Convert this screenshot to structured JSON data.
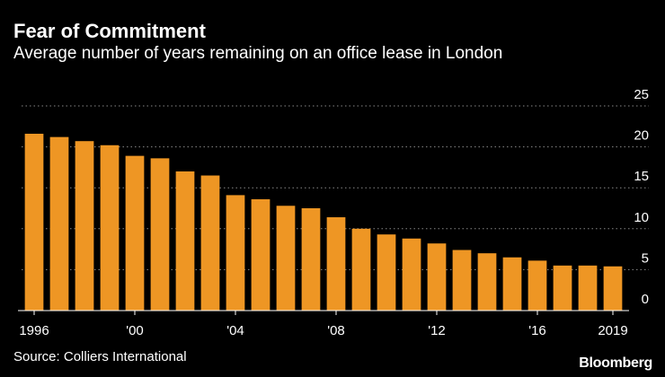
{
  "chart_data": {
    "type": "bar",
    "title": "Fear of Commitment",
    "subtitle": "Average number of years remaining on an office lease in London",
    "categories": [
      "1996",
      "1997",
      "1998",
      "1999",
      "2000",
      "2001",
      "2002",
      "2003",
      "2004",
      "2005",
      "2006",
      "2007",
      "2008",
      "2009",
      "2010",
      "2011",
      "2012",
      "2013",
      "2014",
      "2015",
      "2016",
      "2017",
      "2018",
      "2019"
    ],
    "values": [
      21.6,
      21.2,
      20.7,
      20.2,
      18.9,
      18.6,
      17.0,
      16.5,
      14.1,
      13.6,
      12.8,
      12.5,
      11.4,
      10.0,
      9.3,
      8.8,
      8.2,
      7.4,
      7.0,
      6.5,
      6.1,
      5.5,
      5.5,
      5.4
    ],
    "x_tick_labels": [
      {
        "index": 0,
        "label": "1996"
      },
      {
        "index": 4,
        "label": "'00"
      },
      {
        "index": 8,
        "label": "'04"
      },
      {
        "index": 12,
        "label": "'08"
      },
      {
        "index": 16,
        "label": "'12"
      },
      {
        "index": 20,
        "label": "'16"
      },
      {
        "index": 23,
        "label": "2019"
      }
    ],
    "y_ticks": [
      0,
      5,
      10,
      15,
      20,
      25
    ],
    "ylim": [
      0,
      25
    ],
    "xlabel": "",
    "ylabel": "",
    "grid": true,
    "y_axis_side": "right",
    "bar_color": "#ee9624",
    "grid_color": "#888888",
    "source": "Source: Colliers International",
    "brand": "Bloomberg"
  }
}
